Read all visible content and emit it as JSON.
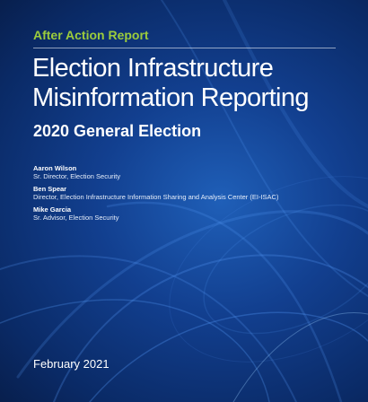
{
  "header": {
    "kicker": "After Action Report",
    "title": "Election Infrastructure Misinformation Reporting",
    "subtitle": "2020 General Election"
  },
  "authors": [
    {
      "name": "Aaron Wilson",
      "role": "Sr. Director, Election Security"
    },
    {
      "name": "Ben Spear",
      "role": "Director, Election Infrastructure Information Sharing and Analysis Center (EI-ISAC)"
    },
    {
      "name": "Mike Garcia",
      "role": "Sr. Advisor, Election Security"
    }
  ],
  "footer": {
    "date": "February 2021"
  },
  "colors": {
    "background": "#123f8f",
    "kicker": "#9ccc3c",
    "text": "#ffffff"
  }
}
